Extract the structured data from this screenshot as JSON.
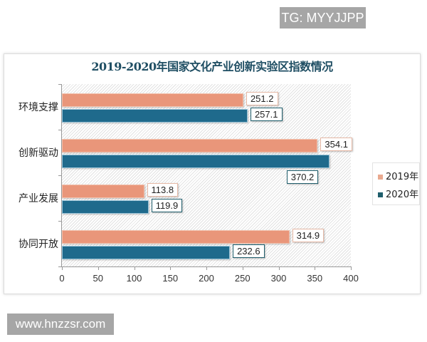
{
  "watermark_top": "TG: MYYJJPP",
  "watermark_bottom": "www.hnzzsr.com",
  "colors": {
    "series_2019": "#e9967a",
    "series_2020": "#1f6a8c",
    "title": "#1f4e63"
  },
  "chart_data": {
    "type": "bar",
    "orientation": "horizontal",
    "title": "2019-2020年国家文化产业创新实验区指数情况",
    "categories": [
      "环境支撑",
      "创新驱动",
      "产业发展",
      "协同开放"
    ],
    "series": [
      {
        "name": "2019年",
        "values": [
          251.2,
          354.1,
          113.8,
          314.9
        ]
      },
      {
        "name": "2020年",
        "values": [
          257.1,
          370.2,
          119.9,
          232.6
        ]
      }
    ],
    "xlabel": "",
    "ylabel": "",
    "xlim": [
      0,
      400
    ],
    "xticks": [
      "0",
      "50",
      "100",
      "150",
      "200",
      "250",
      "300",
      "350",
      "400"
    ],
    "legend_position": "right",
    "grid": false,
    "data_labels": true
  }
}
